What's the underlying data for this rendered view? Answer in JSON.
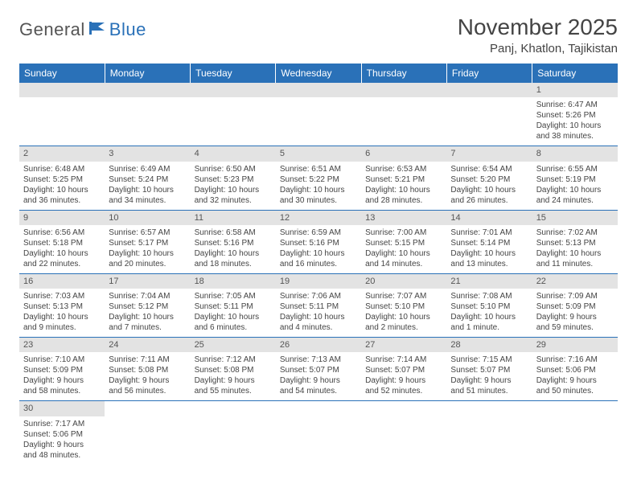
{
  "brand": {
    "general": "General",
    "blue": "Blue"
  },
  "title": "November 2025",
  "location": "Panj, Khatlon, Tajikistan",
  "colors": {
    "header_bg": "#2a71b8",
    "header_text": "#ffffff",
    "daynum_bg": "#e3e3e3",
    "border": "#2a71b8",
    "text": "#444444"
  },
  "day_headers": [
    "Sunday",
    "Monday",
    "Tuesday",
    "Wednesday",
    "Thursday",
    "Friday",
    "Saturday"
  ],
  "weeks": [
    [
      null,
      null,
      null,
      null,
      null,
      null,
      {
        "day": "1",
        "sunrise": "Sunrise: 6:47 AM",
        "sunset": "Sunset: 5:26 PM",
        "daylight1": "Daylight: 10 hours",
        "daylight2": "and 38 minutes."
      }
    ],
    [
      {
        "day": "2",
        "sunrise": "Sunrise: 6:48 AM",
        "sunset": "Sunset: 5:25 PM",
        "daylight1": "Daylight: 10 hours",
        "daylight2": "and 36 minutes."
      },
      {
        "day": "3",
        "sunrise": "Sunrise: 6:49 AM",
        "sunset": "Sunset: 5:24 PM",
        "daylight1": "Daylight: 10 hours",
        "daylight2": "and 34 minutes."
      },
      {
        "day": "4",
        "sunrise": "Sunrise: 6:50 AM",
        "sunset": "Sunset: 5:23 PM",
        "daylight1": "Daylight: 10 hours",
        "daylight2": "and 32 minutes."
      },
      {
        "day": "5",
        "sunrise": "Sunrise: 6:51 AM",
        "sunset": "Sunset: 5:22 PM",
        "daylight1": "Daylight: 10 hours",
        "daylight2": "and 30 minutes."
      },
      {
        "day": "6",
        "sunrise": "Sunrise: 6:53 AM",
        "sunset": "Sunset: 5:21 PM",
        "daylight1": "Daylight: 10 hours",
        "daylight2": "and 28 minutes."
      },
      {
        "day": "7",
        "sunrise": "Sunrise: 6:54 AM",
        "sunset": "Sunset: 5:20 PM",
        "daylight1": "Daylight: 10 hours",
        "daylight2": "and 26 minutes."
      },
      {
        "day": "8",
        "sunrise": "Sunrise: 6:55 AM",
        "sunset": "Sunset: 5:19 PM",
        "daylight1": "Daylight: 10 hours",
        "daylight2": "and 24 minutes."
      }
    ],
    [
      {
        "day": "9",
        "sunrise": "Sunrise: 6:56 AM",
        "sunset": "Sunset: 5:18 PM",
        "daylight1": "Daylight: 10 hours",
        "daylight2": "and 22 minutes."
      },
      {
        "day": "10",
        "sunrise": "Sunrise: 6:57 AM",
        "sunset": "Sunset: 5:17 PM",
        "daylight1": "Daylight: 10 hours",
        "daylight2": "and 20 minutes."
      },
      {
        "day": "11",
        "sunrise": "Sunrise: 6:58 AM",
        "sunset": "Sunset: 5:16 PM",
        "daylight1": "Daylight: 10 hours",
        "daylight2": "and 18 minutes."
      },
      {
        "day": "12",
        "sunrise": "Sunrise: 6:59 AM",
        "sunset": "Sunset: 5:16 PM",
        "daylight1": "Daylight: 10 hours",
        "daylight2": "and 16 minutes."
      },
      {
        "day": "13",
        "sunrise": "Sunrise: 7:00 AM",
        "sunset": "Sunset: 5:15 PM",
        "daylight1": "Daylight: 10 hours",
        "daylight2": "and 14 minutes."
      },
      {
        "day": "14",
        "sunrise": "Sunrise: 7:01 AM",
        "sunset": "Sunset: 5:14 PM",
        "daylight1": "Daylight: 10 hours",
        "daylight2": "and 13 minutes."
      },
      {
        "day": "15",
        "sunrise": "Sunrise: 7:02 AM",
        "sunset": "Sunset: 5:13 PM",
        "daylight1": "Daylight: 10 hours",
        "daylight2": "and 11 minutes."
      }
    ],
    [
      {
        "day": "16",
        "sunrise": "Sunrise: 7:03 AM",
        "sunset": "Sunset: 5:13 PM",
        "daylight1": "Daylight: 10 hours",
        "daylight2": "and 9 minutes."
      },
      {
        "day": "17",
        "sunrise": "Sunrise: 7:04 AM",
        "sunset": "Sunset: 5:12 PM",
        "daylight1": "Daylight: 10 hours",
        "daylight2": "and 7 minutes."
      },
      {
        "day": "18",
        "sunrise": "Sunrise: 7:05 AM",
        "sunset": "Sunset: 5:11 PM",
        "daylight1": "Daylight: 10 hours",
        "daylight2": "and 6 minutes."
      },
      {
        "day": "19",
        "sunrise": "Sunrise: 7:06 AM",
        "sunset": "Sunset: 5:11 PM",
        "daylight1": "Daylight: 10 hours",
        "daylight2": "and 4 minutes."
      },
      {
        "day": "20",
        "sunrise": "Sunrise: 7:07 AM",
        "sunset": "Sunset: 5:10 PM",
        "daylight1": "Daylight: 10 hours",
        "daylight2": "and 2 minutes."
      },
      {
        "day": "21",
        "sunrise": "Sunrise: 7:08 AM",
        "sunset": "Sunset: 5:10 PM",
        "daylight1": "Daylight: 10 hours",
        "daylight2": "and 1 minute."
      },
      {
        "day": "22",
        "sunrise": "Sunrise: 7:09 AM",
        "sunset": "Sunset: 5:09 PM",
        "daylight1": "Daylight: 9 hours",
        "daylight2": "and 59 minutes."
      }
    ],
    [
      {
        "day": "23",
        "sunrise": "Sunrise: 7:10 AM",
        "sunset": "Sunset: 5:09 PM",
        "daylight1": "Daylight: 9 hours",
        "daylight2": "and 58 minutes."
      },
      {
        "day": "24",
        "sunrise": "Sunrise: 7:11 AM",
        "sunset": "Sunset: 5:08 PM",
        "daylight1": "Daylight: 9 hours",
        "daylight2": "and 56 minutes."
      },
      {
        "day": "25",
        "sunrise": "Sunrise: 7:12 AM",
        "sunset": "Sunset: 5:08 PM",
        "daylight1": "Daylight: 9 hours",
        "daylight2": "and 55 minutes."
      },
      {
        "day": "26",
        "sunrise": "Sunrise: 7:13 AM",
        "sunset": "Sunset: 5:07 PM",
        "daylight1": "Daylight: 9 hours",
        "daylight2": "and 54 minutes."
      },
      {
        "day": "27",
        "sunrise": "Sunrise: 7:14 AM",
        "sunset": "Sunset: 5:07 PM",
        "daylight1": "Daylight: 9 hours",
        "daylight2": "and 52 minutes."
      },
      {
        "day": "28",
        "sunrise": "Sunrise: 7:15 AM",
        "sunset": "Sunset: 5:07 PM",
        "daylight1": "Daylight: 9 hours",
        "daylight2": "and 51 minutes."
      },
      {
        "day": "29",
        "sunrise": "Sunrise: 7:16 AM",
        "sunset": "Sunset: 5:06 PM",
        "daylight1": "Daylight: 9 hours",
        "daylight2": "and 50 minutes."
      }
    ],
    [
      {
        "day": "30",
        "sunrise": "Sunrise: 7:17 AM",
        "sunset": "Sunset: 5:06 PM",
        "daylight1": "Daylight: 9 hours",
        "daylight2": "and 48 minutes."
      },
      null,
      null,
      null,
      null,
      null,
      null
    ]
  ]
}
